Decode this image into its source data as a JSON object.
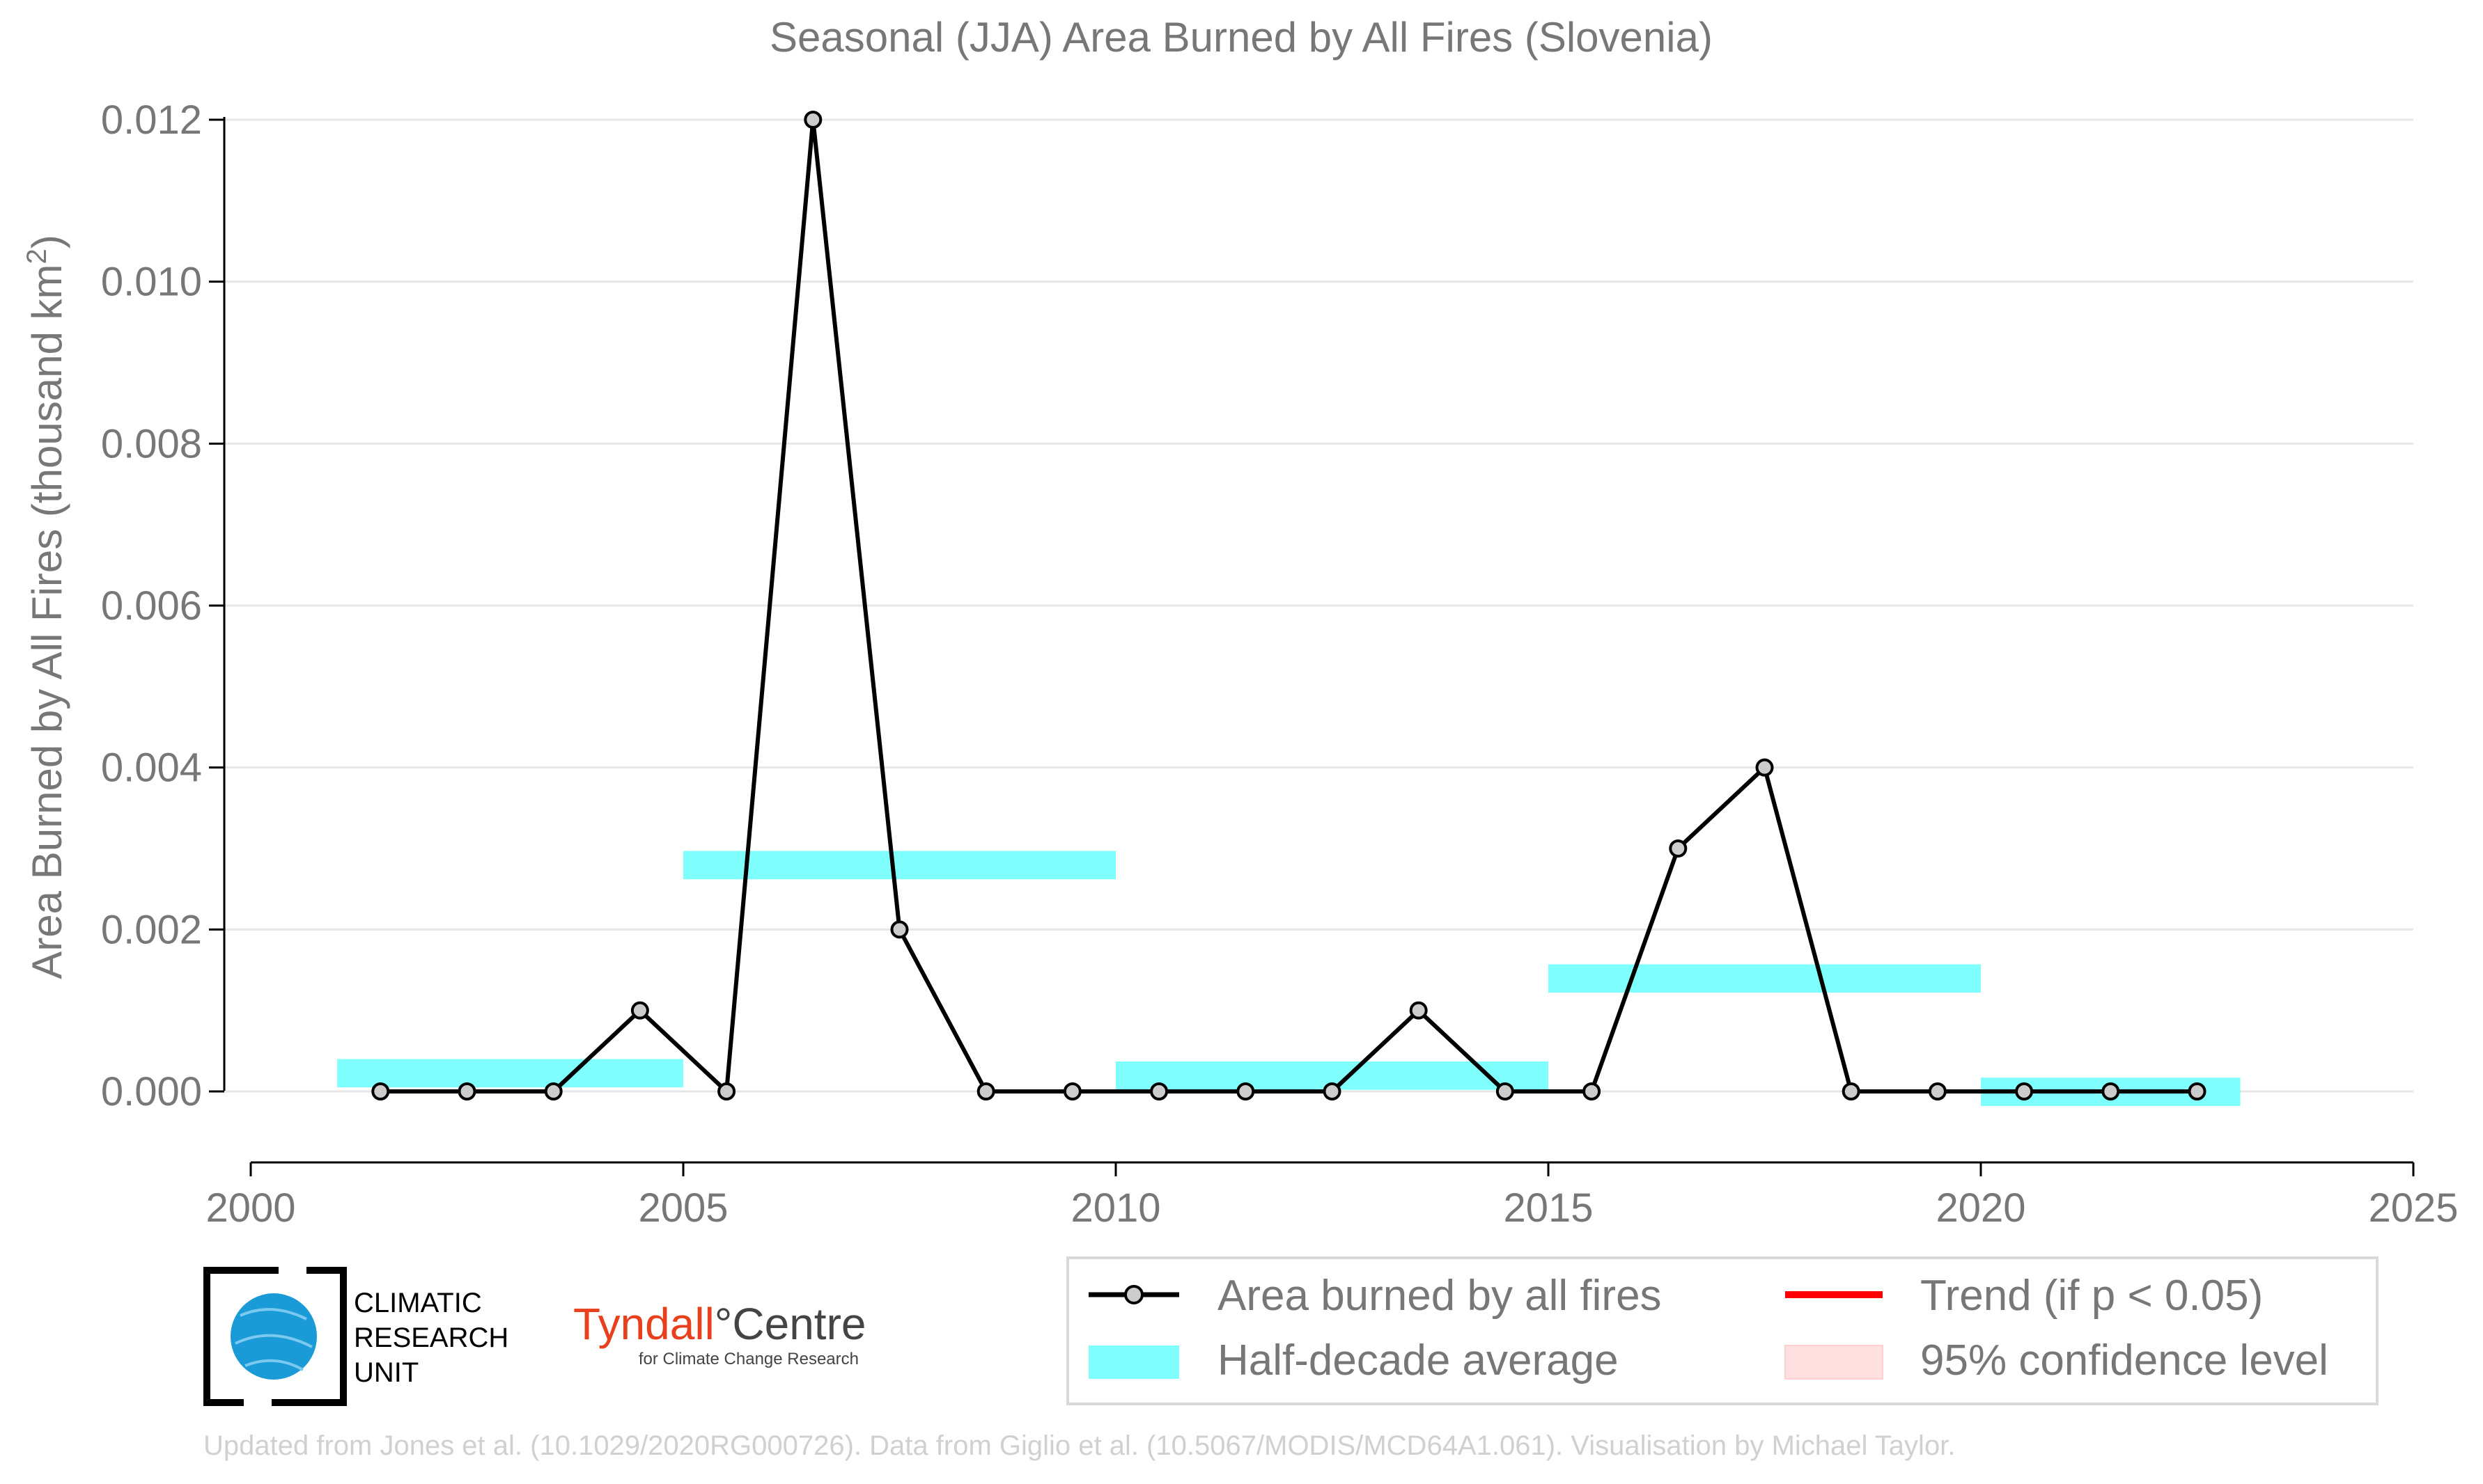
{
  "chart_data": {
    "type": "line",
    "title": "Seasonal (JJA) Area Burned by All Fires (Slovenia)",
    "xlabel": "",
    "ylabel": "Area Burned by All Fires (thousand km",
    "ylabel_sup": "2",
    "ylabel_end": ")",
    "xlim": [
      2000,
      2025
    ],
    "ylim": [
      -0.0009,
      0.0122
    ],
    "x_ticks": [
      2000,
      2005,
      2010,
      2015,
      2020,
      2025
    ],
    "x_tick_labels": [
      "2000",
      "2005",
      "2010",
      "2015",
      "2020",
      "2025"
    ],
    "y_ticks": [
      0,
      0.002,
      0.004,
      0.006,
      0.008,
      0.01,
      0.012
    ],
    "y_tick_labels": [
      "0.000",
      "0.002",
      "0.004",
      "0.006",
      "0.008",
      "0.010",
      "0.012"
    ],
    "grid": "horizontal",
    "series": [
      {
        "name": "Area burned by all fires",
        "color": "#000000",
        "marker_fill": "#cccccc",
        "x": [
          2001.5,
          2002.5,
          2003.5,
          2004.5,
          2005.5,
          2006.5,
          2007.5,
          2008.5,
          2009.5,
          2010.5,
          2011.5,
          2012.5,
          2013.5,
          2014.5,
          2015.5,
          2016.5,
          2017.5,
          2018.5,
          2019.5,
          2020.5,
          2021.5,
          2022.5
        ],
        "y": [
          0,
          0,
          0,
          0.001,
          0,
          0.012,
          0.002,
          0,
          0,
          0,
          0,
          0,
          0.001,
          0,
          0,
          0.003,
          0.004,
          0,
          0,
          0,
          0,
          0
        ]
      }
    ],
    "half_decade_average": {
      "name": "Half-decade average",
      "color": "#80ffff",
      "segments": [
        {
          "x_start": 2001,
          "x_end": 2005,
          "y_low": 5e-05,
          "y_high": 0.0004
        },
        {
          "x_start": 2005,
          "x_end": 2010,
          "y_low": 0.00262,
          "y_high": 0.00297
        },
        {
          "x_start": 2010,
          "x_end": 2015,
          "y_low": 2e-05,
          "y_high": 0.00037
        },
        {
          "x_start": 2015,
          "x_end": 2020,
          "y_low": 0.00122,
          "y_high": 0.00157
        },
        {
          "x_start": 2020,
          "x_end": 2023,
          "y_low": -0.00018,
          "y_high": 0.00017
        }
      ]
    },
    "legend": {
      "placement": "bottom-right",
      "entries": [
        {
          "label": "Area burned by all fires",
          "kind": "line-marker",
          "color": "#000000"
        },
        {
          "label": "Trend (if p < 0.05)",
          "kind": "line",
          "color": "#ff0000"
        },
        {
          "label": "Half-decade average",
          "kind": "band",
          "color": "#80ffff"
        },
        {
          "label": "95% confidence level",
          "kind": "band",
          "color": "#ffe0e0"
        }
      ]
    }
  },
  "logos": {
    "cru_line1": "CLIMATIC",
    "cru_line2": "RESEARCH",
    "cru_line3": "UNIT",
    "tyndall_a": "Tyndall",
    "tyndall_degree": "°",
    "tyndall_b": "Centre",
    "tyndall_sub": "for Climate Change Research"
  },
  "credit": "Updated from Jones et al. (10.1029/2020RG000726). Data from Giglio et al. (10.5067/MODIS/MCD64A1.061). Visualisation by Michael Taylor."
}
